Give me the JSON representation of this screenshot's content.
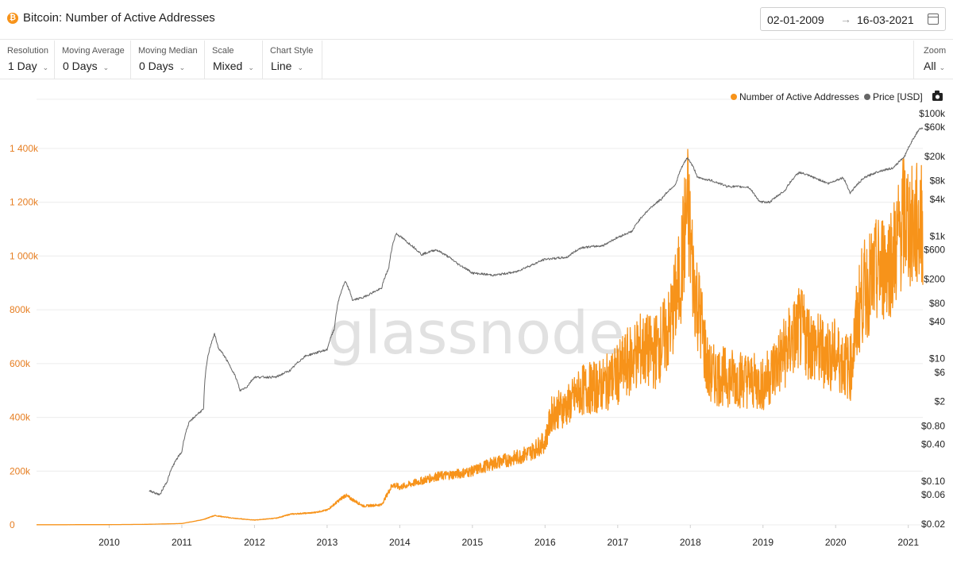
{
  "header": {
    "logo_glyph": "₿",
    "title": "Bitcoin: Number of Active Addresses",
    "date_from": "02-01-2009",
    "date_arrow": "→",
    "date_to": "16-03-2021"
  },
  "controls": {
    "resolution": {
      "label": "Resolution",
      "value": "1 Day"
    },
    "moving_average": {
      "label": "Moving Average",
      "value": "0 Days"
    },
    "moving_median": {
      "label": "Moving Median",
      "value": "0 Days"
    },
    "scale": {
      "label": "Scale",
      "value": "Mixed"
    },
    "chart_style": {
      "label": "Chart Style",
      "value": "Line"
    },
    "zoom": {
      "label": "Zoom",
      "value": "All"
    },
    "chevron": "⌄"
  },
  "watermark": "glassnode",
  "chart_data": {
    "type": "line",
    "title": "Bitcoin: Number of Active Addresses",
    "legend_position": "top-right",
    "grid": true,
    "x_ticks": [
      "2010",
      "2011",
      "2012",
      "2013",
      "2014",
      "2015",
      "2016",
      "2017",
      "2018",
      "2019",
      "2020",
      "2021"
    ],
    "xlim": [
      2009.0,
      2021.2
    ],
    "left_axis": {
      "scale": "linear",
      "ylim": [
        0,
        1400000
      ],
      "tick_values": [
        0,
        200000,
        400000,
        600000,
        800000,
        1000000,
        1200000,
        1400000
      ],
      "tick_labels": [
        "0",
        "200k",
        "400k",
        "600k",
        "800k",
        "1 000k",
        "1 200k",
        "1 400k"
      ]
    },
    "right_axis": {
      "scale": "log",
      "tick_values": [
        0.02,
        0.06,
        0.1,
        0.4,
        0.8,
        2,
        6,
        10,
        40,
        80,
        200,
        600,
        1000,
        4000,
        8000,
        20000,
        60000,
        100000
      ],
      "tick_labels": [
        "$0.02",
        "$0.06",
        "$0.10",
        "$0.40",
        "$0.80",
        "$2",
        "$6",
        "$10",
        "$40",
        "$80",
        "$200",
        "$600",
        "$1k",
        "$4k",
        "$8k",
        "$20k",
        "$60k",
        "$100k"
      ]
    },
    "series": [
      {
        "name": "Number of Active Addresses",
        "axis": "left",
        "color": "#f7931a",
        "points": [
          [
            2009.0,
            500
          ],
          [
            2010.0,
            1000
          ],
          [
            2010.5,
            2000
          ],
          [
            2011.0,
            5000
          ],
          [
            2011.3,
            20000
          ],
          [
            2011.45,
            35000
          ],
          [
            2011.7,
            25000
          ],
          [
            2012.0,
            18000
          ],
          [
            2012.3,
            25000
          ],
          [
            2012.5,
            40000
          ],
          [
            2012.8,
            45000
          ],
          [
            2013.0,
            55000
          ],
          [
            2013.25,
            110000
          ],
          [
            2013.5,
            70000
          ],
          [
            2013.75,
            75000
          ],
          [
            2013.9,
            150000
          ],
          [
            2014.0,
            140000
          ],
          [
            2014.5,
            180000
          ],
          [
            2014.8,
            190000
          ],
          [
            2015.0,
            200000
          ],
          [
            2015.3,
            230000
          ],
          [
            2015.6,
            250000
          ],
          [
            2015.8,
            270000
          ],
          [
            2016.0,
            310000
          ],
          [
            2016.1,
            420000
          ],
          [
            2016.3,
            440000
          ],
          [
            2016.5,
            500000
          ],
          [
            2016.8,
            520000
          ],
          [
            2017.0,
            560000
          ],
          [
            2017.3,
            650000
          ],
          [
            2017.5,
            640000
          ],
          [
            2017.7,
            720000
          ],
          [
            2017.85,
            900000
          ],
          [
            2017.96,
            1180000
          ],
          [
            2018.05,
            900000
          ],
          [
            2018.15,
            750000
          ],
          [
            2018.25,
            560000
          ],
          [
            2018.5,
            550000
          ],
          [
            2018.8,
            540000
          ],
          [
            2019.0,
            520000
          ],
          [
            2019.25,
            620000
          ],
          [
            2019.5,
            730000
          ],
          [
            2019.75,
            650000
          ],
          [
            2020.0,
            630000
          ],
          [
            2020.2,
            580000
          ],
          [
            2020.35,
            850000
          ],
          [
            2020.6,
            950000
          ],
          [
            2020.8,
            1000000
          ],
          [
            2020.95,
            1150000
          ],
          [
            2021.05,
            1100000
          ],
          [
            2021.2,
            1120000
          ]
        ]
      },
      {
        "name": "Price [USD]",
        "axis": "right",
        "color": "#666666",
        "points": [
          [
            2010.55,
            0.07
          ],
          [
            2010.7,
            0.06
          ],
          [
            2010.8,
            0.1
          ],
          [
            2010.9,
            0.2
          ],
          [
            2011.0,
            0.3
          ],
          [
            2011.1,
            0.9
          ],
          [
            2011.3,
            1.5
          ],
          [
            2011.45,
            25
          ],
          [
            2011.5,
            15
          ],
          [
            2011.65,
            8
          ],
          [
            2011.8,
            3
          ],
          [
            2011.9,
            3.5
          ],
          [
            2012.0,
            5
          ],
          [
            2012.3,
            5
          ],
          [
            2012.5,
            6.5
          ],
          [
            2012.7,
            11
          ],
          [
            2012.9,
            13
          ],
          [
            2013.0,
            14
          ],
          [
            2013.1,
            30
          ],
          [
            2013.25,
            180
          ],
          [
            2013.35,
            90
          ],
          [
            2013.5,
            100
          ],
          [
            2013.75,
            140
          ],
          [
            2013.85,
            300
          ],
          [
            2013.95,
            1100
          ],
          [
            2014.1,
            800
          ],
          [
            2014.3,
            500
          ],
          [
            2014.5,
            600
          ],
          [
            2014.8,
            350
          ],
          [
            2015.0,
            250
          ],
          [
            2015.3,
            230
          ],
          [
            2015.6,
            260
          ],
          [
            2015.85,
            350
          ],
          [
            2016.0,
            420
          ],
          [
            2016.3,
            450
          ],
          [
            2016.5,
            650
          ],
          [
            2016.8,
            700
          ],
          [
            2017.0,
            950
          ],
          [
            2017.2,
            1200
          ],
          [
            2017.4,
            2500
          ],
          [
            2017.6,
            4000
          ],
          [
            2017.8,
            7000
          ],
          [
            2017.96,
            19000
          ],
          [
            2018.1,
            9000
          ],
          [
            2018.3,
            8000
          ],
          [
            2018.5,
            6500
          ],
          [
            2018.8,
            6300
          ],
          [
            2018.95,
            3600
          ],
          [
            2019.1,
            3600
          ],
          [
            2019.3,
            5500
          ],
          [
            2019.5,
            11000
          ],
          [
            2019.7,
            9000
          ],
          [
            2019.9,
            7200
          ],
          [
            2020.1,
            9000
          ],
          [
            2020.2,
            5000
          ],
          [
            2020.4,
            9000
          ],
          [
            2020.6,
            11500
          ],
          [
            2020.8,
            13000
          ],
          [
            2020.95,
            20000
          ],
          [
            2021.05,
            35000
          ],
          [
            2021.15,
            55000
          ],
          [
            2021.2,
            57000
          ]
        ]
      }
    ]
  }
}
